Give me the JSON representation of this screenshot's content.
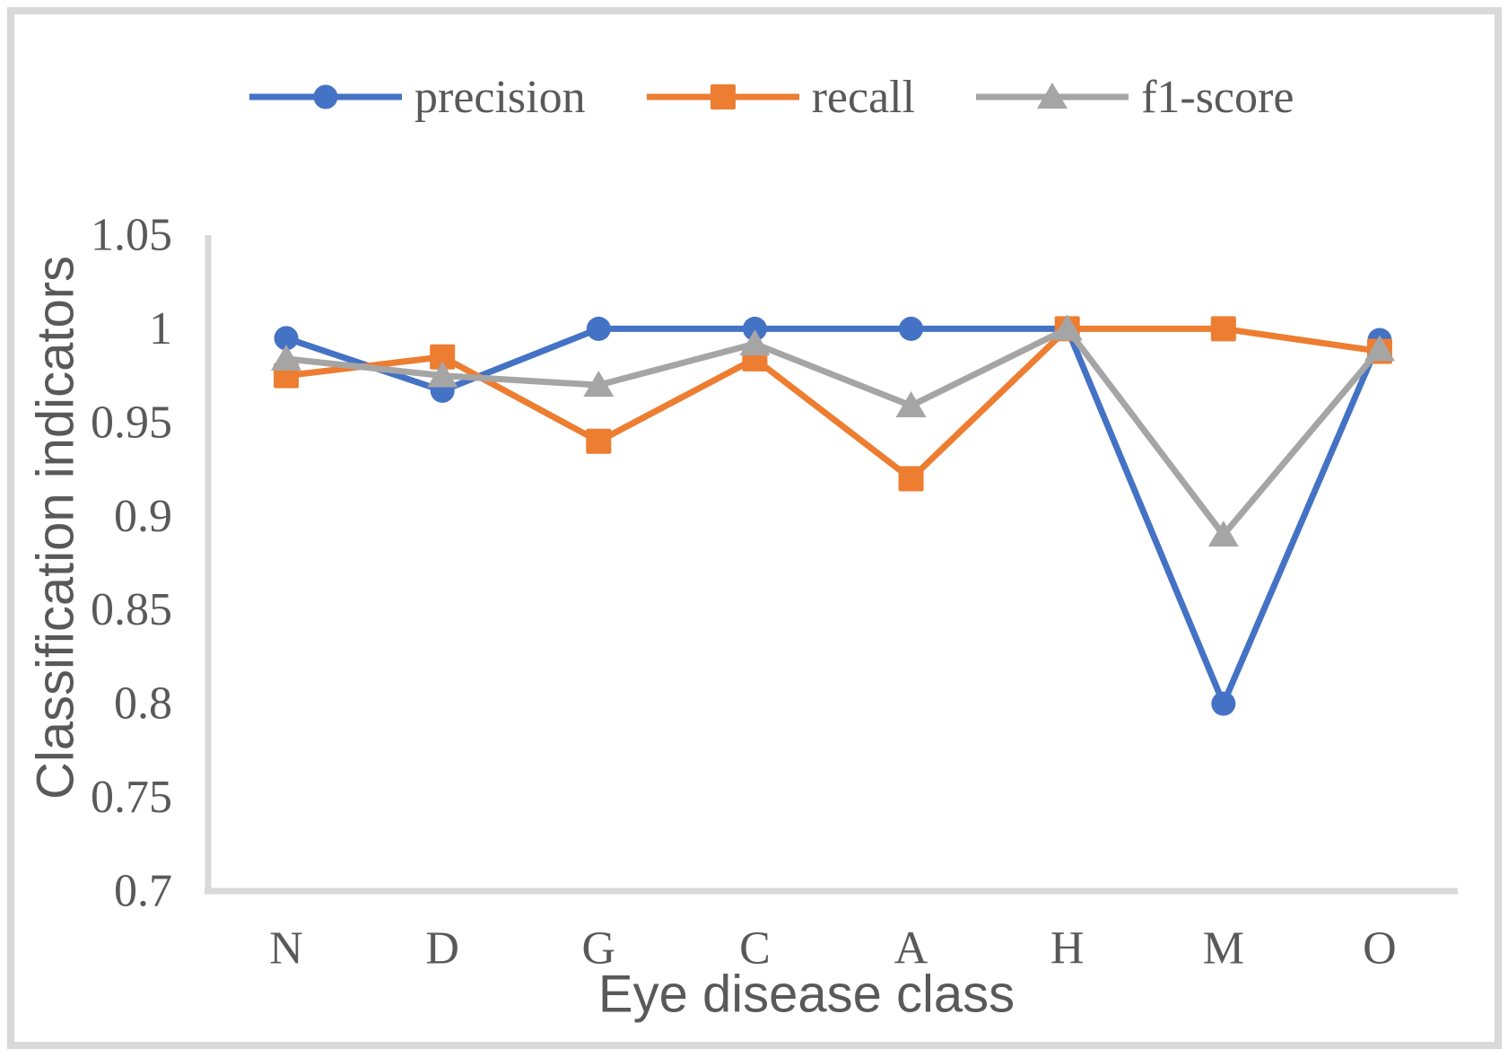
{
  "figure": {
    "frame_color": "#d9d9d9",
    "background": "#ffffff",
    "text_color": "#595959",
    "axis_line_color": "#d9d9d9"
  },
  "chart_data": {
    "type": "line",
    "title": "",
    "xlabel": "Eye disease class",
    "ylabel": "Classification indicators",
    "categories": [
      "N",
      "D",
      "G",
      "C",
      "A",
      "H",
      "M",
      "O"
    ],
    "series": [
      {
        "name": "precision",
        "marker": "circle",
        "color": "#4472C4",
        "values": [
          0.995,
          0.967,
          1.0,
          1.0,
          1.0,
          1.0,
          0.8,
          0.994
        ]
      },
      {
        "name": "recall",
        "marker": "square",
        "color": "#ED7D31",
        "values": [
          0.975,
          0.985,
          0.94,
          0.984,
          0.92,
          1.0,
          1.0,
          0.988
        ]
      },
      {
        "name": "f1-score",
        "marker": "triangle",
        "color": "#A5A5A5",
        "values": [
          0.984,
          0.975,
          0.97,
          0.992,
          0.959,
          1.0,
          0.89,
          0.989
        ]
      }
    ],
    "ylim": [
      0.7,
      1.05
    ],
    "ytick_step": 0.05,
    "yticks": [
      "0.7",
      "0.75",
      "0.8",
      "0.85",
      "0.9",
      "0.95",
      "1",
      "1.05"
    ],
    "grid": false,
    "legend_position": "top"
  }
}
